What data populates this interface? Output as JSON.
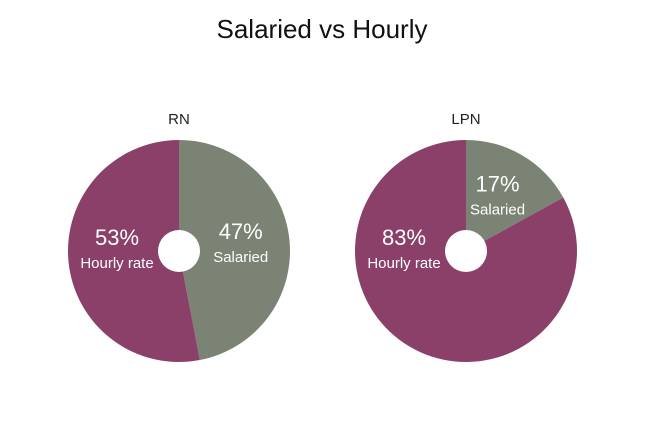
{
  "title": "Salaried vs Hourly",
  "chart_data": [
    {
      "type": "pie",
      "title": "RN",
      "categories": [
        "Salaried",
        "Hourly rate"
      ],
      "values": [
        47,
        53
      ],
      "value_labels": [
        "47%",
        "53%"
      ],
      "colors": [
        "#7b8374",
        "#8a4068"
      ]
    },
    {
      "type": "pie",
      "title": "LPN",
      "categories": [
        "Salaried",
        "Hourly rate"
      ],
      "values": [
        17,
        83
      ],
      "value_labels": [
        "17%",
        "83%"
      ],
      "colors": [
        "#7b8374",
        "#8a4068"
      ]
    }
  ]
}
